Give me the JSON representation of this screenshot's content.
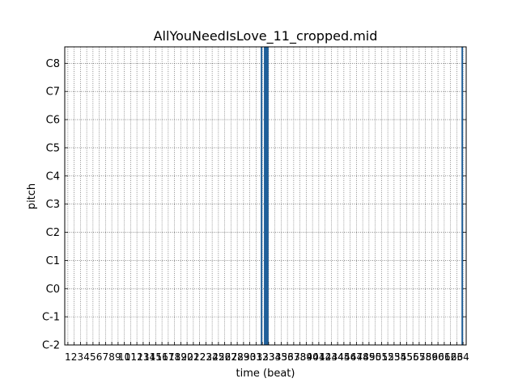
{
  "chart_data": {
    "type": "heatmap",
    "title": "AllYouNeedIsLove_11_cropped.mid",
    "xlabel": "time (beat)",
    "ylabel": "pitch",
    "x_tick_labels": [
      "1",
      "2",
      "3",
      "4",
      "5",
      "6",
      "7",
      "8",
      "9",
      "10",
      "11",
      "12",
      "13",
      "14",
      "15",
      "16",
      "17",
      "18",
      "19",
      "20",
      "21",
      "22",
      "23",
      "24",
      "25",
      "26",
      "27",
      "28",
      "29",
      "30",
      "31",
      "32",
      "33",
      "34",
      "35",
      "36",
      "37",
      "38",
      "39",
      "40",
      "41",
      "42",
      "43",
      "44",
      "45",
      "46",
      "47",
      "48",
      "49",
      "50",
      "51",
      "52",
      "53",
      "54",
      "55",
      "56",
      "57",
      "58",
      "59",
      "60",
      "61",
      "62",
      "63",
      "64"
    ],
    "y_tick_labels": [
      "C-2",
      "C-1",
      "C0",
      "C1",
      "C2",
      "C3",
      "C4",
      "C5",
      "C6",
      "C7",
      "C8"
    ],
    "y_tick_pitches": [
      0,
      12,
      24,
      36,
      48,
      60,
      72,
      84,
      96,
      108,
      120
    ],
    "xlim": [
      0.5,
      64.5
    ],
    "ylim": [
      0,
      127
    ],
    "grid": true,
    "notes": [
      {
        "start": 31.75,
        "end": 32.0,
        "pitch_low": 0,
        "pitch_high": 127
      },
      {
        "start": 32.25,
        "end": 33.0,
        "pitch_low": 0,
        "pitch_high": 127
      },
      {
        "start": 63.75,
        "end": 64.0,
        "pitch_low": 0,
        "pitch_high": 127
      }
    ],
    "note_color": "#1f5f99"
  }
}
